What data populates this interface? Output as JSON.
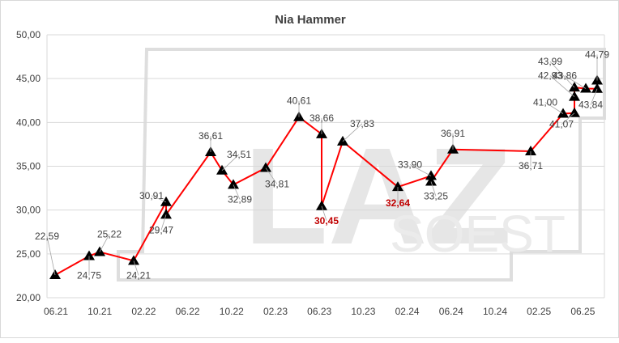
{
  "chart_data": {
    "type": "line",
    "title": "Nia Hammer",
    "xlabel": "",
    "ylabel": "",
    "ylim": [
      20,
      50
    ],
    "yticks": [
      "20,00",
      "25,00",
      "30,00",
      "35,00",
      "40,00",
      "45,00",
      "50,00"
    ],
    "yticks_values": [
      20,
      25,
      30,
      35,
      40,
      45,
      50
    ],
    "xticks": [
      "06.21",
      "10.21",
      "02.22",
      "06.22",
      "10.22",
      "02.23",
      "06.23",
      "10.23",
      "02.24",
      "06.24",
      "10.24",
      "02.25",
      "06.25"
    ],
    "grid": true,
    "legend": "none",
    "watermark": "LAZ SOEST",
    "colors": {
      "line": "#ff0000",
      "marker": "#000000",
      "highlight_label": "#c00000",
      "label": "#404040",
      "grid": "#d9d9d9"
    },
    "series": [
      {
        "values": [
          22.59,
          24.75,
          25.22,
          24.21,
          30.91,
          29.47,
          36.61,
          34.51,
          32.89,
          34.81,
          40.61,
          38.66,
          30.45,
          37.83,
          32.64,
          33.9,
          33.25,
          36.91,
          36.71,
          41.0,
          41.07,
          42.93,
          43.99,
          43.86,
          43.84,
          44.79
        ],
        "labels": [
          "22,59",
          "24,75",
          "25,22",
          "24,21",
          "30,91",
          "29,47",
          "36,61",
          "34,51",
          "32,89",
          "34,81",
          "40,61",
          "38,66",
          "30,45",
          "37,83",
          "32,64",
          "33,90",
          "33,25",
          "36,91",
          "36,71",
          "41,00",
          "41,07",
          "42,93",
          "43,99",
          "43,86",
          "43,84",
          "44,79"
        ],
        "highlighted": [
          "30,45",
          "32,64"
        ]
      }
    ]
  }
}
